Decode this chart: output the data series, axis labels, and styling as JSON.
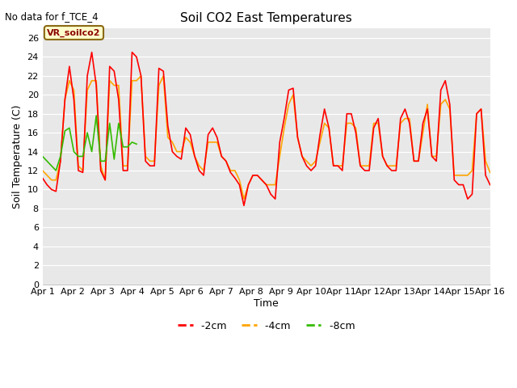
{
  "title": "Soil CO2 East Temperatures",
  "xlabel": "Time",
  "ylabel": "Soil Temperature (C)",
  "top_left_text": "No data for f_TCE_4",
  "legend_box_text": "VR_soilco2",
  "ylim": [
    0,
    27
  ],
  "yticks": [
    0,
    2,
    4,
    6,
    8,
    10,
    12,
    14,
    16,
    18,
    20,
    22,
    24,
    26
  ],
  "xtick_labels": [
    "Apr 1",
    "Apr 2",
    "Apr 3",
    "Apr 4",
    "Apr 5",
    "Apr 6",
    "Apr 7",
    "Apr 8",
    "Apr 9",
    "Apr 10",
    "Apr 11",
    "Apr 12",
    "Apr 13",
    "Apr 14",
    "Apr 15",
    "Apr 16"
  ],
  "color_2cm": "#ff0000",
  "color_4cm": "#ffa500",
  "color_8cm": "#33bb00",
  "line_width": 1.2,
  "t_2cm": [
    11.2,
    10.5,
    10.0,
    9.8,
    13.0,
    19.5,
    23.0,
    19.5,
    12.0,
    11.8,
    22.0,
    24.5,
    21.0,
    12.0,
    11.0,
    23.0,
    22.5,
    19.5,
    12.0,
    12.0,
    24.5,
    24.0,
    22.0,
    13.0,
    12.5,
    12.5,
    22.8,
    22.5,
    16.7,
    14.0,
    13.5,
    13.2,
    16.5,
    15.8,
    13.5,
    12.0,
    11.5,
    15.8,
    16.5,
    15.5,
    13.5,
    13.0,
    11.8,
    11.2,
    10.5,
    8.3,
    10.5,
    11.5,
    11.5,
    11.0,
    10.5,
    9.5,
    9.0,
    15.0,
    17.5,
    20.5,
    20.7,
    15.5,
    13.5,
    12.5,
    12.0,
    12.5,
    15.8,
    18.5,
    16.5,
    12.5,
    12.5,
    12.0,
    18.0,
    18.0,
    16.0,
    12.5,
    12.0,
    12.0,
    16.5,
    17.5,
    13.5,
    12.5,
    12.0,
    12.0,
    17.5,
    18.5,
    17.0,
    13.0,
    13.0,
    17.0,
    18.5,
    13.5,
    13.0,
    20.5,
    21.5,
    19.0,
    11.0,
    10.5,
    10.5,
    9.0,
    9.5,
    18.0,
    18.5,
    11.5,
    10.5
  ],
  "t_4cm": [
    12.0,
    11.5,
    11.0,
    11.0,
    13.0,
    19.5,
    21.5,
    20.5,
    12.5,
    12.0,
    20.5,
    21.5,
    21.5,
    12.5,
    11.0,
    21.5,
    21.0,
    21.0,
    12.5,
    12.5,
    21.5,
    21.5,
    22.0,
    13.5,
    13.0,
    13.0,
    21.0,
    22.0,
    15.5,
    15.0,
    14.0,
    14.0,
    15.5,
    15.0,
    13.5,
    12.5,
    12.0,
    15.0,
    15.0,
    15.0,
    13.5,
    13.0,
    12.0,
    12.0,
    11.0,
    9.0,
    10.5,
    11.5,
    11.5,
    11.0,
    10.5,
    10.5,
    10.5,
    13.5,
    16.5,
    19.0,
    20.0,
    15.5,
    13.5,
    13.0,
    12.5,
    13.0,
    15.0,
    17.0,
    16.5,
    12.5,
    12.5,
    12.5,
    17.0,
    17.0,
    16.5,
    12.5,
    12.5,
    12.5,
    17.0,
    17.0,
    13.5,
    12.5,
    12.5,
    12.5,
    17.0,
    17.5,
    17.5,
    13.0,
    13.0,
    16.0,
    19.0,
    13.5,
    13.5,
    19.0,
    19.5,
    18.5,
    11.5,
    11.5,
    11.5,
    11.5,
    12.0,
    18.0,
    18.5,
    13.0,
    11.8
  ],
  "t_8cm": [
    13.5,
    13.0,
    12.5,
    12.0,
    13.5,
    16.2,
    16.5,
    14.0,
    13.5,
    13.5,
    16.0,
    14.0,
    17.8,
    13.0,
    13.0,
    17.0,
    13.2,
    17.0,
    14.5,
    14.5,
    15.0,
    14.8,
    null,
    null,
    null,
    null,
    null,
    null,
    null,
    null,
    null,
    null,
    null,
    null,
    null,
    null,
    null,
    null,
    null,
    null,
    null,
    null,
    null,
    null,
    null,
    null,
    null,
    null,
    null,
    null,
    null,
    null,
    null,
    null,
    null,
    null,
    null,
    null,
    null,
    null,
    null,
    null,
    null,
    null,
    null,
    null,
    null,
    null,
    null,
    null,
    null,
    null,
    null,
    null,
    null,
    null,
    null,
    null,
    null,
    null,
    null,
    null,
    null,
    null,
    null,
    null,
    null,
    null,
    null,
    null,
    null,
    null,
    null,
    null,
    null,
    null,
    null,
    null,
    null,
    null,
    null
  ]
}
